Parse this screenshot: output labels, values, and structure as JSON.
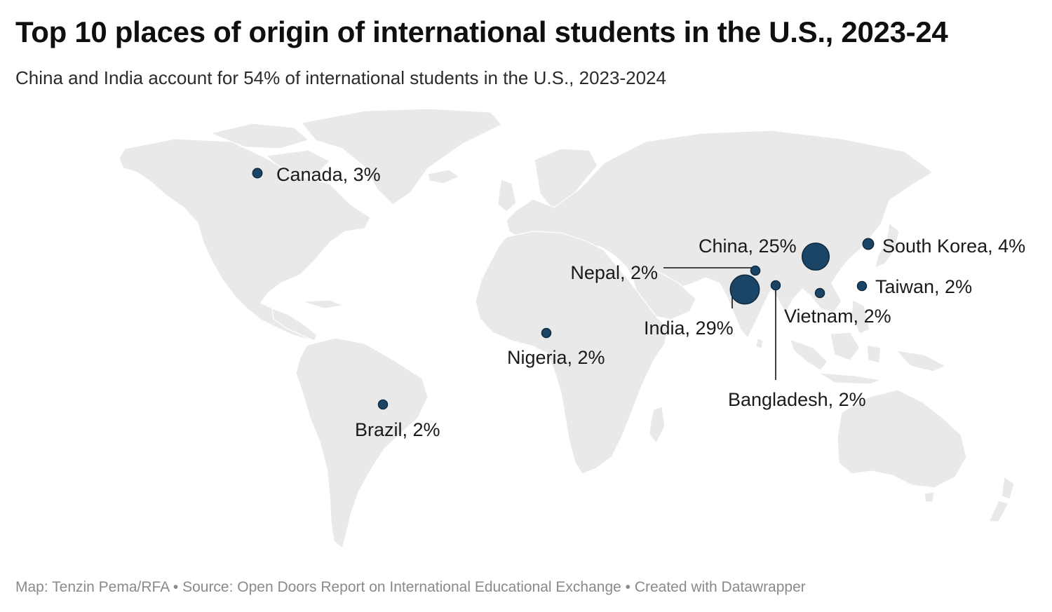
{
  "title": "Top 10 places of origin of international students in the U.S., 2023-24",
  "subtitle": "China and India account for 54% of international students in the U.S., 2023-2024",
  "footer": "Map: Tenzin Pema/RFA • Source: Open Doors Report on International Educational Exchange • Created with Datawrapper",
  "colors": {
    "bubble": "#1b4566",
    "land": "#e9e9e9",
    "background": "#ffffff"
  },
  "countries": [
    {
      "id": "canada",
      "label": "Canada, 3%",
      "share_pct": 3
    },
    {
      "id": "south-korea",
      "label": "South Korea, 4%",
      "share_pct": 4
    },
    {
      "id": "china",
      "label": "China, 25%",
      "share_pct": 25
    },
    {
      "id": "nepal",
      "label": "Nepal, 2%",
      "share_pct": 2
    },
    {
      "id": "taiwan",
      "label": "Taiwan, 2%",
      "share_pct": 2
    },
    {
      "id": "vietnam",
      "label": "Vietnam, 2%",
      "share_pct": 2
    },
    {
      "id": "india",
      "label": "India, 29%",
      "share_pct": 29
    },
    {
      "id": "nigeria",
      "label": "Nigeria, 2%",
      "share_pct": 2
    },
    {
      "id": "bangladesh",
      "label": "Bangladesh, 2%",
      "share_pct": 2
    },
    {
      "id": "brazil",
      "label": "Brazil, 2%",
      "share_pct": 2
    }
  ]
}
